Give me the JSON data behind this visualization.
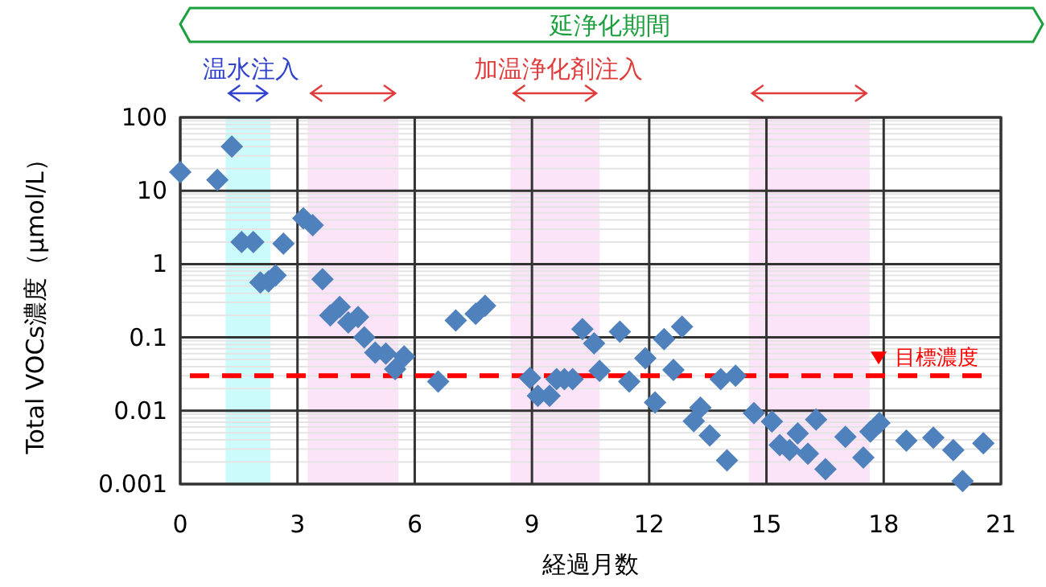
{
  "chart_data": {
    "type": "scatter",
    "xlabel": "経過月数",
    "ylabel": "Total VOCs濃度（μmol/L）",
    "xlim": [
      0,
      21
    ],
    "xticks": [
      0,
      3,
      6,
      9,
      12,
      15,
      18,
      21
    ],
    "ylim": [
      0.001,
      100
    ],
    "yticks": [
      0.001,
      0.01,
      0.1,
      1,
      10,
      100
    ],
    "log": "y",
    "grid": true,
    "marker": "diamond",
    "series": [
      {
        "color": "#4f81bd",
        "x": [
          0,
          0.95,
          1.32,
          1.57,
          1.87,
          2.64,
          2.05,
          2.26,
          2.44,
          3.15,
          3.39,
          3.64,
          3.84,
          4.08,
          4.3,
          4.55,
          4.71,
          4.99,
          5.26,
          5.5,
          5.73,
          6.6,
          7.05,
          7.56,
          7.8,
          8.95,
          9.15,
          9.45,
          9.63,
          9.83,
          10.04,
          10.29,
          10.59,
          10.73,
          11.25,
          11.49,
          11.9,
          12.15,
          12.38,
          12.62,
          12.84,
          13.14,
          13.31,
          13.55,
          13.99,
          13.83,
          14.21,
          14.68,
          15.14,
          15.34,
          15.59,
          15.8,
          16.06,
          16.27,
          16.51,
          17.02,
          17.48,
          17.66,
          17.89,
          18.58,
          19.27,
          19.78,
          20.02,
          20.55
        ],
        "values": [
          18,
          14,
          40,
          2,
          2,
          1.9,
          0.56,
          0.58,
          0.7,
          4.2,
          3.4,
          0.62,
          0.2,
          0.26,
          0.16,
          0.19,
          0.1,
          0.062,
          0.06,
          0.037,
          0.055,
          0.025,
          0.17,
          0.21,
          0.27,
          0.028,
          0.016,
          0.016,
          0.027,
          0.027,
          0.027,
          0.13,
          0.083,
          0.035,
          0.12,
          0.025,
          0.052,
          0.013,
          0.095,
          0.036,
          0.14,
          0.0072,
          0.011,
          0.0046,
          0.0021,
          0.027,
          0.03,
          0.0093,
          0.0071,
          0.0034,
          0.0029,
          0.0049,
          0.0026,
          0.0076,
          0.0016,
          0.0044,
          0.0023,
          0.0052,
          0.0068,
          0.0039,
          0.0043,
          0.0029,
          0.0011,
          0.0036
        ]
      }
    ],
    "ref_lines": [
      {
        "axis": "y",
        "value": 0.03,
        "label": "目標濃度",
        "color": "#ff0000",
        "line_style": "dashed"
      }
    ],
    "bands": [
      {
        "axis": "x",
        "from": 1.16,
        "to": 2.31,
        "label": "温水注入",
        "color": "#ccfbfb"
      },
      {
        "axis": "x",
        "from": 3.26,
        "to": 5.58,
        "label": null,
        "color": "#fbe4f7"
      },
      {
        "axis": "x",
        "from": 8.45,
        "to": 10.73,
        "label": "加温浄化剤注入",
        "color": "#fbe4f7"
      },
      {
        "axis": "x",
        "from": 14.55,
        "to": 17.64,
        "label": null,
        "color": "#fbe4f7"
      }
    ],
    "annotations": [
      "延浄化期間"
    ]
  }
}
